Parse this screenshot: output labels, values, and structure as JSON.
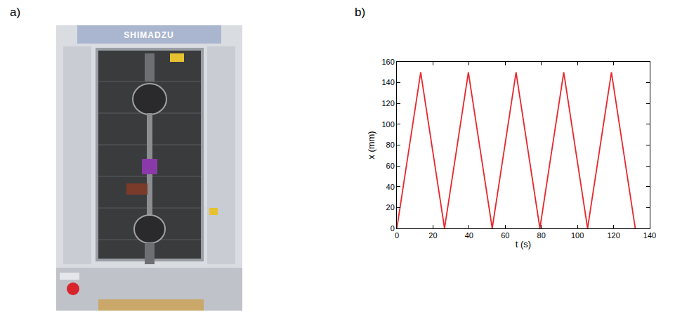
{
  "panel_labels": [
    "a)",
    "b)"
  ],
  "photo": {
    "text": "SHIMADZU"
  },
  "chart_data": {
    "type": "line",
    "x": [
      0,
      13.2,
      26.4,
      39.6,
      52.8,
      66,
      79.2,
      92.4,
      105.6,
      118.8,
      132
    ],
    "series": [
      {
        "color": "#e8262b",
        "values": [
          0,
          150,
          0,
          150,
          0,
          150,
          0,
          150,
          0,
          150,
          0
        ]
      }
    ],
    "xlabel": "t (s)",
    "ylabel": "x (mm)",
    "xlim": [
      0,
      140
    ],
    "xticks": [
      0,
      20,
      40,
      60,
      80,
      100,
      120,
      140
    ],
    "ylim": [
      0,
      160
    ],
    "yticks": [
      0,
      20,
      40,
      60,
      80,
      100,
      120,
      140,
      160
    ],
    "grid": false
  }
}
